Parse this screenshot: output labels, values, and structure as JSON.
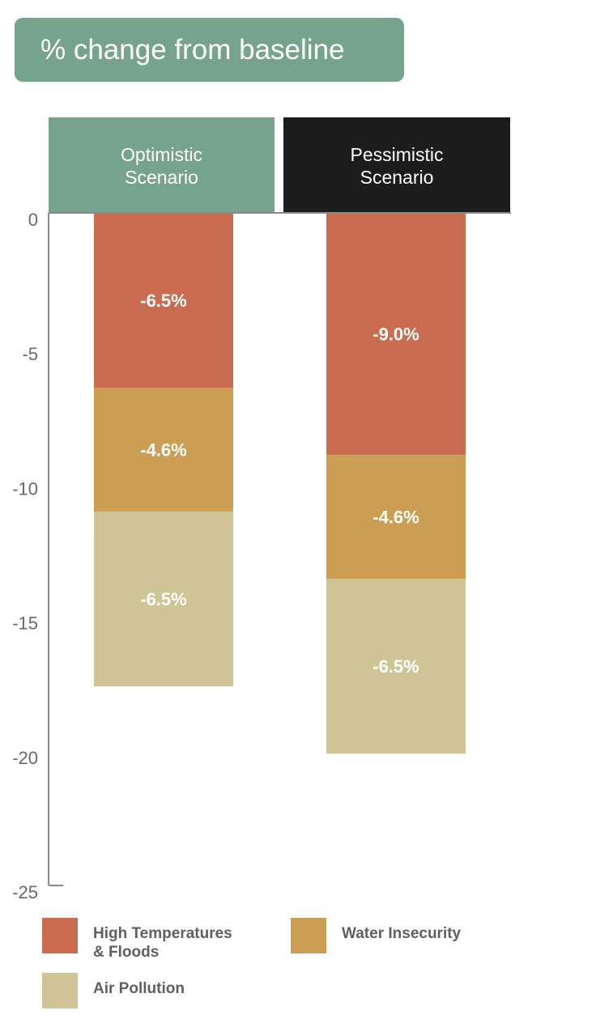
{
  "title": "% change from baseline",
  "colors": {
    "title_bg": "#76a38b",
    "optimistic_header": "#76a38b",
    "pessimistic_header": "#1c1c1c",
    "high_temp": "#c96c4f",
    "water": "#cc9e53",
    "air": "#cfc496",
    "axis": "#8a8a8a",
    "tick_text": "#6a6a6a"
  },
  "chart_data": {
    "type": "bar",
    "stacked": true,
    "categories": [
      "Optimistic Scenario",
      "Pessimistic Scenario"
    ],
    "category_lines": [
      [
        "Optimistic",
        "Scenario"
      ],
      [
        "Pessimistic",
        "Scenario"
      ]
    ],
    "series": [
      {
        "name": "High Temperatures & Floods",
        "key": "high_temp",
        "values": [
          -6.5,
          -9.0
        ],
        "labels": [
          "-6.5%",
          "-9.0%"
        ]
      },
      {
        "name": "Water Insecurity",
        "key": "water",
        "values": [
          -4.6,
          -4.6
        ],
        "labels": [
          "-4.6%",
          "-4.6%"
        ]
      },
      {
        "name": "Air Pollution",
        "key": "air",
        "values": [
          -6.5,
          -6.5
        ],
        "labels": [
          "-6.5%",
          "-6.5%"
        ]
      }
    ],
    "ylim": [
      -25,
      0
    ],
    "yticks": [
      0,
      -5,
      -10,
      -15,
      -20,
      -25
    ],
    "ytick_labels": [
      "0",
      "-5",
      "-10",
      "-15",
      "-20",
      "-25"
    ],
    "legend_position": "bottom"
  },
  "legend": {
    "items": [
      {
        "label_lines": [
          "High Temperatures",
          "& Floods"
        ],
        "color_key": "high_temp"
      },
      {
        "label_lines": [
          "Water Insecurity"
        ],
        "color_key": "water"
      },
      {
        "label_lines": [
          "Air Pollution"
        ],
        "color_key": "air"
      }
    ]
  }
}
